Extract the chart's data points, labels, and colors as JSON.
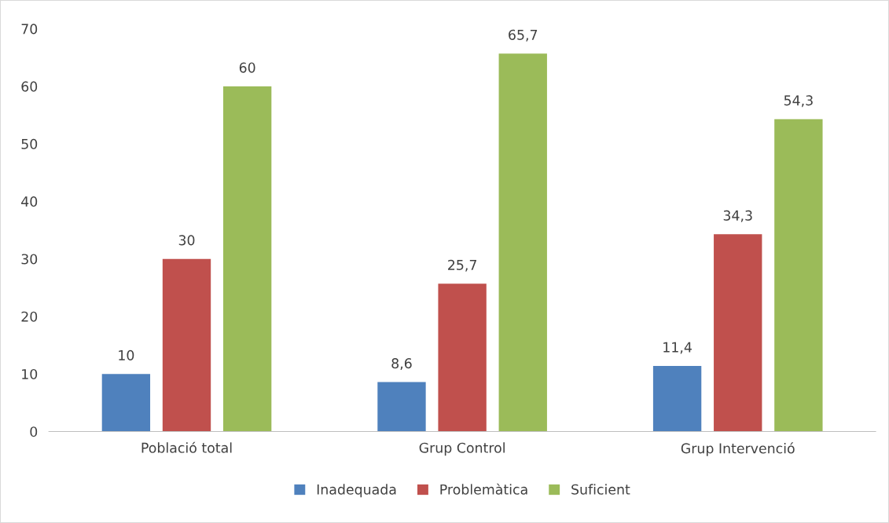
{
  "chart_data": {
    "type": "bar",
    "categories": [
      "Població total",
      "Grup Control",
      "Grup Intervenció"
    ],
    "series": [
      {
        "name": "Inadequada",
        "color": "#4f81bd",
        "values": [
          10,
          8.6,
          11.4
        ],
        "value_labels": [
          "10",
          "8,6",
          "11,4"
        ]
      },
      {
        "name": "Problemàtica",
        "color": "#c0504d",
        "values": [
          30,
          25.7,
          34.3
        ],
        "value_labels": [
          "30",
          "25,7",
          "34,3"
        ]
      },
      {
        "name": "Suficient",
        "color": "#9bbb59",
        "values": [
          60,
          65.7,
          54.3
        ],
        "value_labels": [
          "60",
          "65,7",
          "54,3"
        ]
      }
    ],
    "ylim": [
      0,
      70
    ],
    "yticks": [
      0,
      10,
      20,
      30,
      40,
      50,
      60,
      70
    ],
    "grid": false,
    "legend": "bottom"
  }
}
